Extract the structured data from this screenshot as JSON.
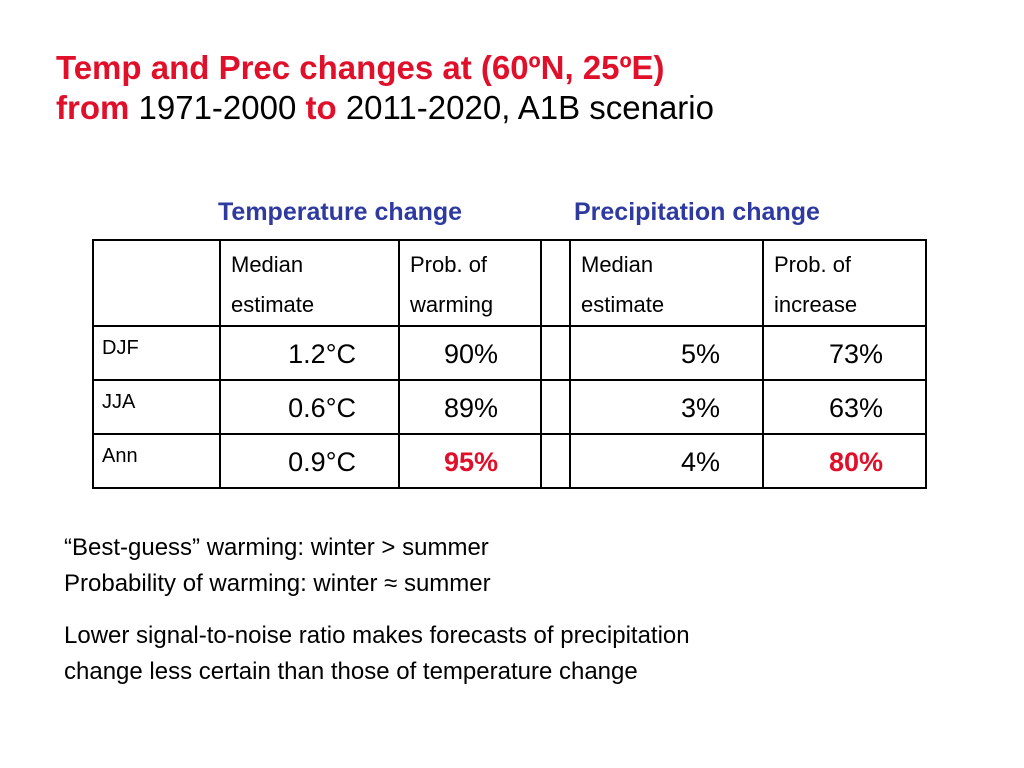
{
  "title": {
    "line1": "Temp and Prec changes at (60ºN, 25ºE)",
    "from": "from",
    "period1": " 1971-2000 ",
    "to": "to",
    "period2": " 2011-2020, A1B scenario"
  },
  "group_headers": {
    "temperature": "Temperature change",
    "precipitation": "Precipitation change"
  },
  "table": {
    "columns": {
      "temp_median": [
        "Median",
        "estimate"
      ],
      "temp_prob": [
        "Prob. of",
        "warming"
      ],
      "prec_median": [
        "Median",
        "estimate"
      ],
      "prec_prob": [
        "Prob. of",
        "increase"
      ]
    },
    "rows": [
      {
        "label": "DJF",
        "temp_median": "1.2°C",
        "temp_prob": "90%",
        "prec_median": "5%",
        "prec_prob": "73%"
      },
      {
        "label": "JJA",
        "temp_median": "0.6°C",
        "temp_prob": "89%",
        "prec_median": "3%",
        "prec_prob": "63%"
      },
      {
        "label": "Ann",
        "temp_median": "0.9°C",
        "temp_prob": "95%",
        "prec_median": "4%",
        "prec_prob": "80%"
      }
    ],
    "highlight_color": "#e0102a"
  },
  "notes": {
    "line1": "“Best-guess” warming: winter > summer",
    "line2": "Probability of warming: winter ≈ summer",
    "line3": "Lower signal-to-noise ratio makes forecasts of precipitation",
    "line4": "change less certain than those of temperature change"
  }
}
